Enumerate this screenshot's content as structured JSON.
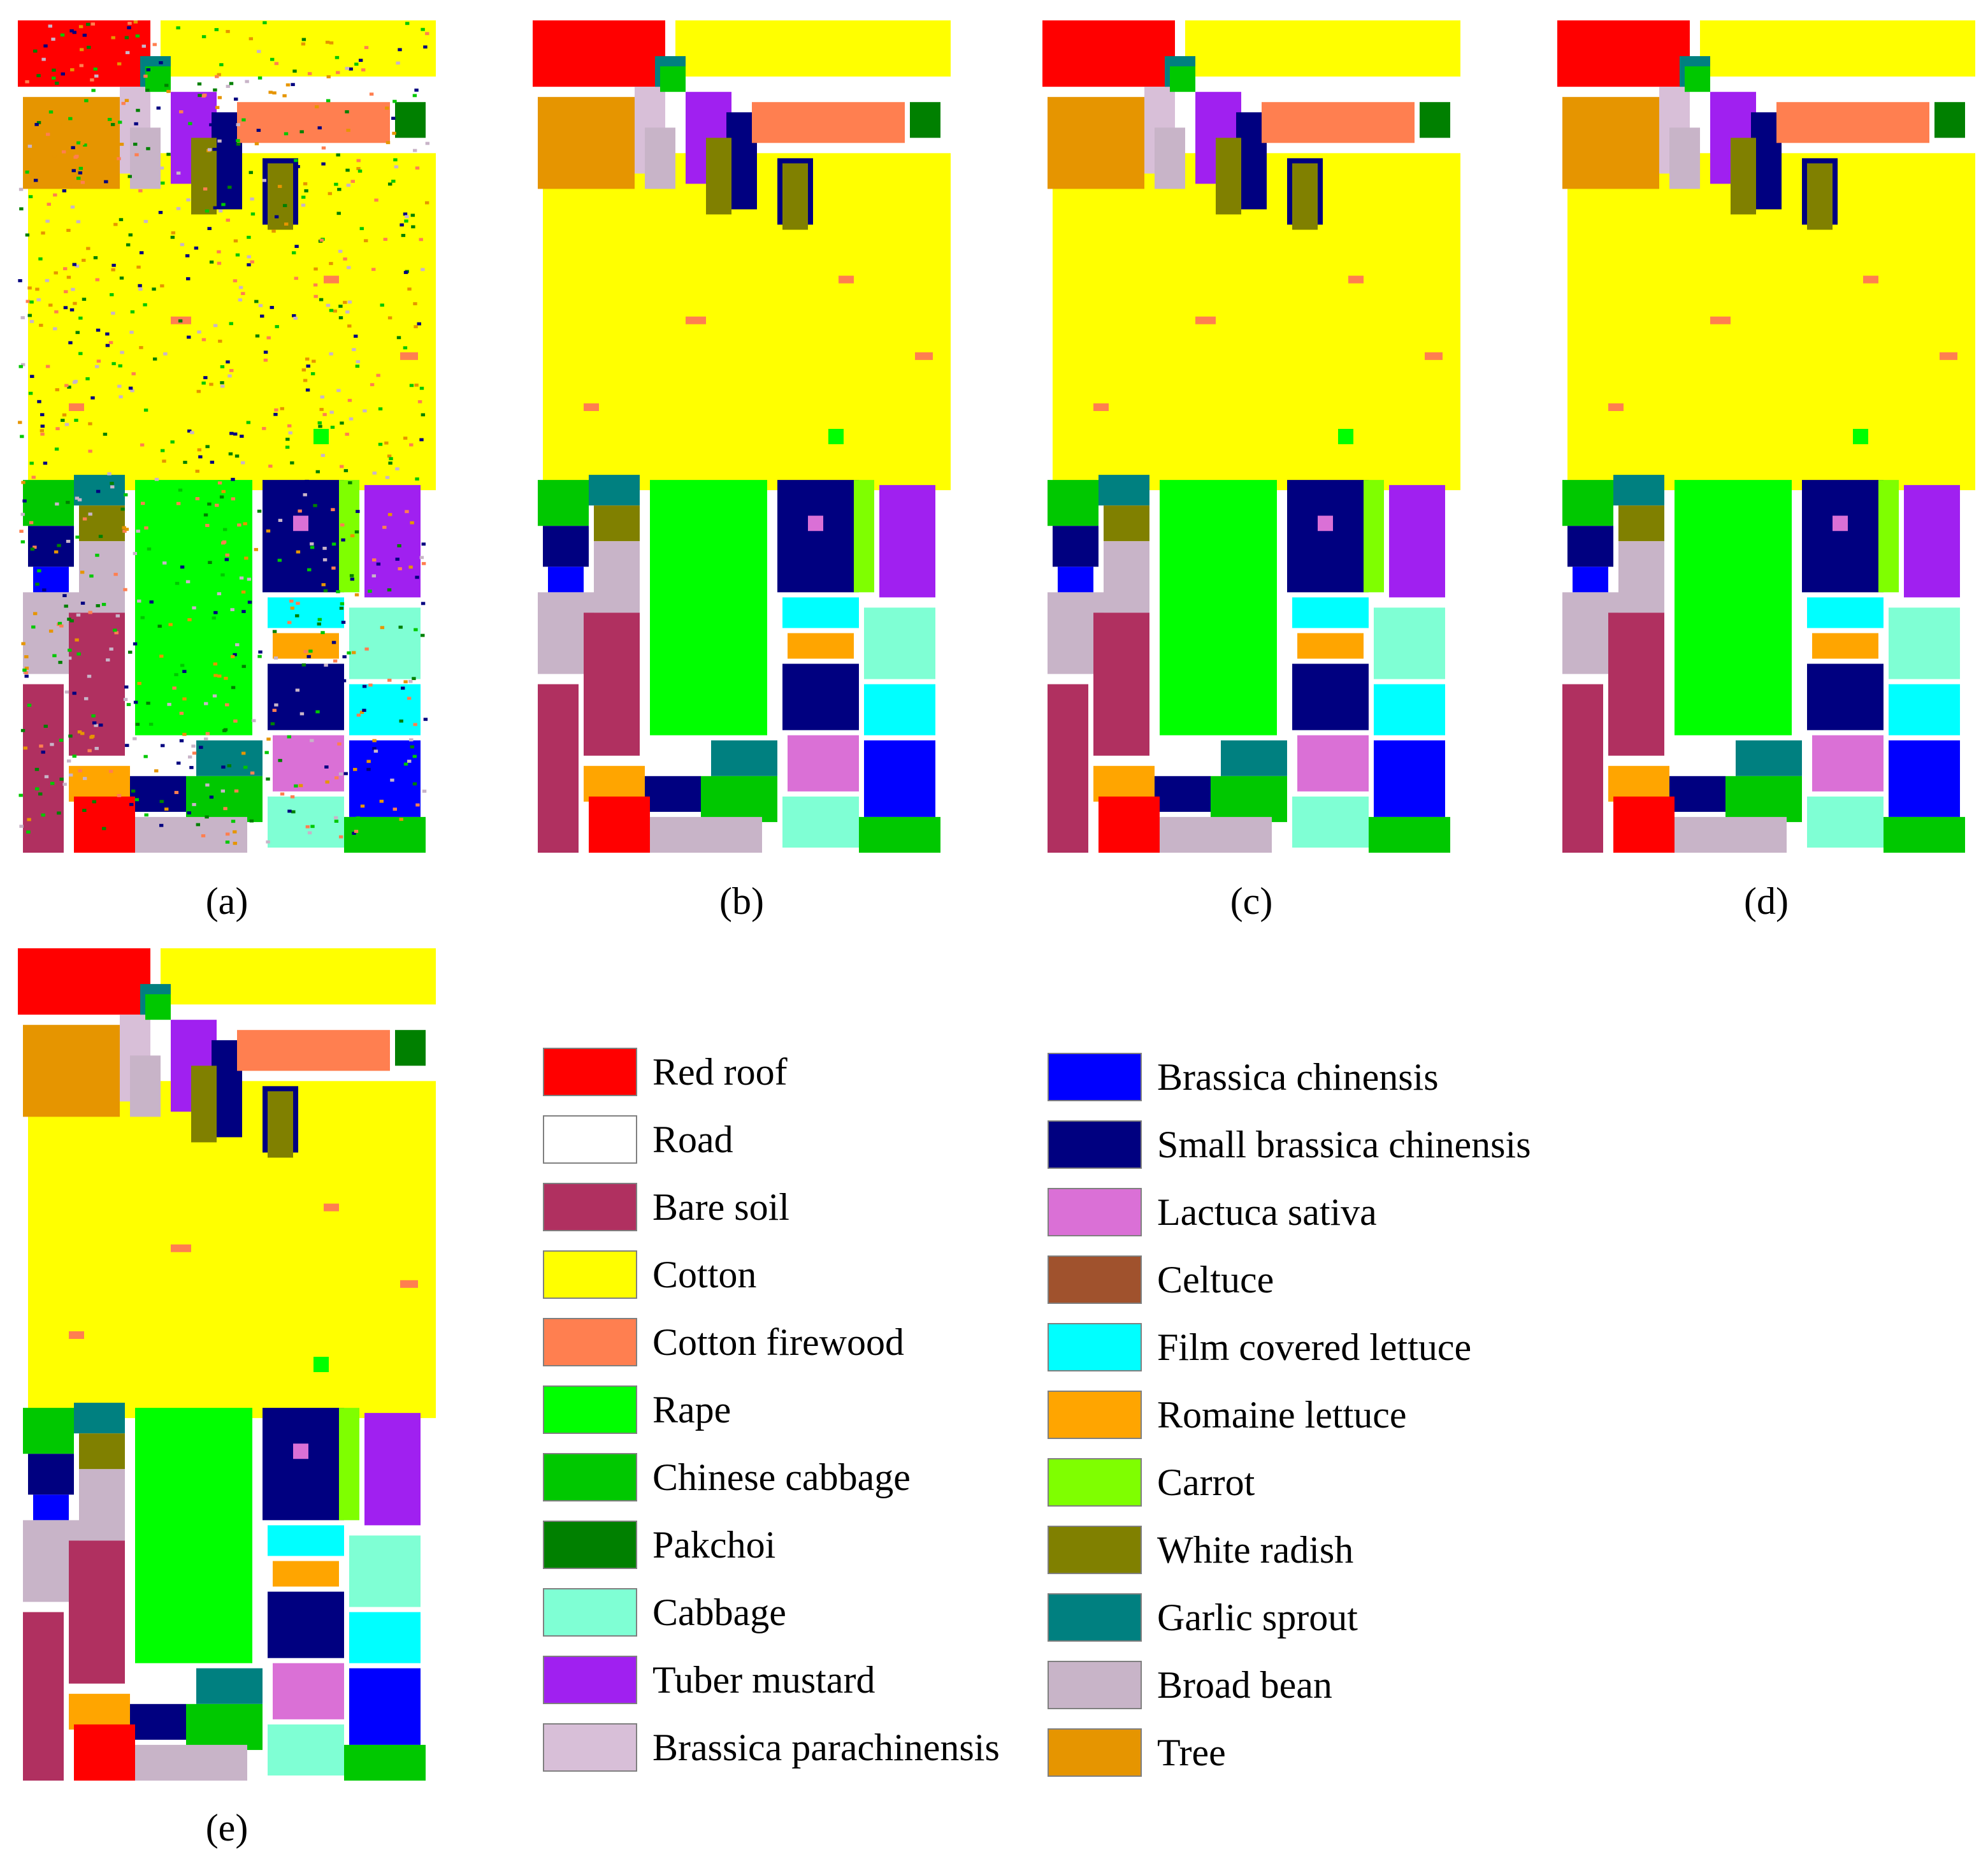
{
  "captions": [
    "(a)",
    "(b)",
    "(c)",
    "(d)",
    "(e)"
  ],
  "legend": [
    {
      "label": "Red roof",
      "color": "#ff0000"
    },
    {
      "label": "Road",
      "color": "#ffffff"
    },
    {
      "label": "Bare soil",
      "color": "#b03060"
    },
    {
      "label": "Cotton",
      "color": "#ffff00"
    },
    {
      "label": "Cotton firewood",
      "color": "#ff7f50"
    },
    {
      "label": "Rape",
      "color": "#00ff00"
    },
    {
      "label": "Chinese cabbage",
      "color": "#00c800"
    },
    {
      "label": "Pakchoi",
      "color": "#008000"
    },
    {
      "label": "Cabbage",
      "color": "#7fffd4"
    },
    {
      "label": "Tuber mustard",
      "color": "#a020f0"
    },
    {
      "label": "Brassica parachinensis",
      "color": "#d8bfd8"
    },
    {
      "label": "Brassica chinensis",
      "color": "#0000ff"
    },
    {
      "label": "Small brassica chinensis",
      "color": "#000080"
    },
    {
      "label": "Lactuca sativa",
      "color": "#da70d6"
    },
    {
      "label": "Celtuce",
      "color": "#a0522d"
    },
    {
      "label": "Film covered lettuce",
      "color": "#00ffff"
    },
    {
      "label": "Romaine lettuce",
      "color": "#ffa500"
    },
    {
      "label": "Carrot",
      "color": "#7fff00"
    },
    {
      "label": "White radish",
      "color": "#808000"
    },
    {
      "label": "Garlic sprout",
      "color": "#008080"
    },
    {
      "label": "Broad bean",
      "color": "#c8b4c8"
    },
    {
      "label": "Tree",
      "color": "#e69500"
    }
  ]
}
